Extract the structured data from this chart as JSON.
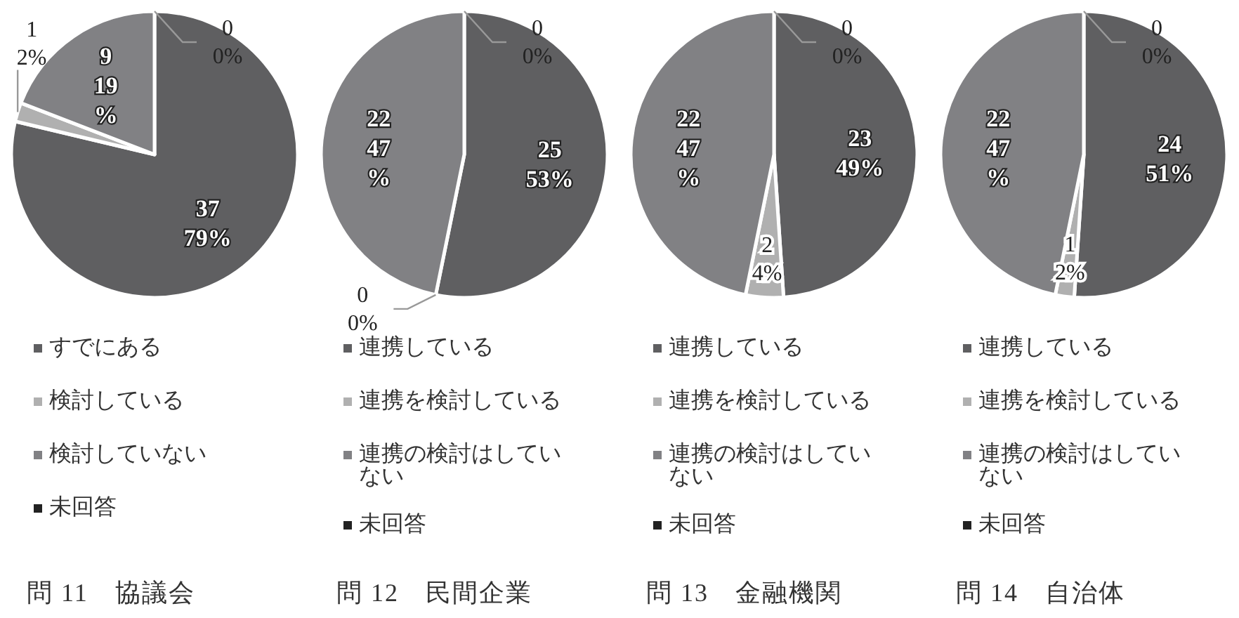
{
  "chart_data": [
    {
      "type": "pie",
      "title": "問 11　協議会",
      "categories": [
        "すでにある",
        "検討している",
        "検討していない",
        "未回答"
      ],
      "values": [
        37,
        1,
        9,
        0
      ],
      "colors": [
        "#5f5f61",
        "#b0b0b0",
        "#818184",
        "#222222"
      ],
      "value_labels": [
        "37\n79%",
        "1\n2%",
        "9\n19\n%",
        "0\n0%"
      ],
      "legend": "bottom"
    },
    {
      "type": "pie",
      "title": "問 12　民間企業",
      "categories": [
        "連携している",
        "連携を検討している",
        "連携の検討はしていない",
        "未回答"
      ],
      "values": [
        25,
        0,
        22,
        0
      ],
      "colors": [
        "#5f5f61",
        "#b0b0b0",
        "#818184",
        "#222222"
      ],
      "value_labels": [
        "25\n53%",
        "0\n0%",
        "22\n47\n%",
        "0\n0%"
      ],
      "legend": "bottom"
    },
    {
      "type": "pie",
      "title": "問 13　金融機関",
      "categories": [
        "連携している",
        "連携を検討している",
        "連携の検討はしていない",
        "未回答"
      ],
      "values": [
        23,
        2,
        22,
        0
      ],
      "colors": [
        "#5f5f61",
        "#b0b0b0",
        "#818184",
        "#222222"
      ],
      "value_labels": [
        "23\n49%",
        "2\n4%",
        "22\n47\n%",
        "0\n0%"
      ],
      "legend": "bottom"
    },
    {
      "type": "pie",
      "title": "問 14　自治体",
      "categories": [
        "連携している",
        "連携を検討している",
        "連携の検討はしていない",
        "未回答"
      ],
      "values": [
        24,
        1,
        22,
        0
      ],
      "colors": [
        "#5f5f61",
        "#b0b0b0",
        "#818184",
        "#222222"
      ],
      "value_labels": [
        "24\n51%",
        "1\n2%",
        "22\n47\n%",
        "0\n0%"
      ],
      "legend": "bottom"
    }
  ]
}
